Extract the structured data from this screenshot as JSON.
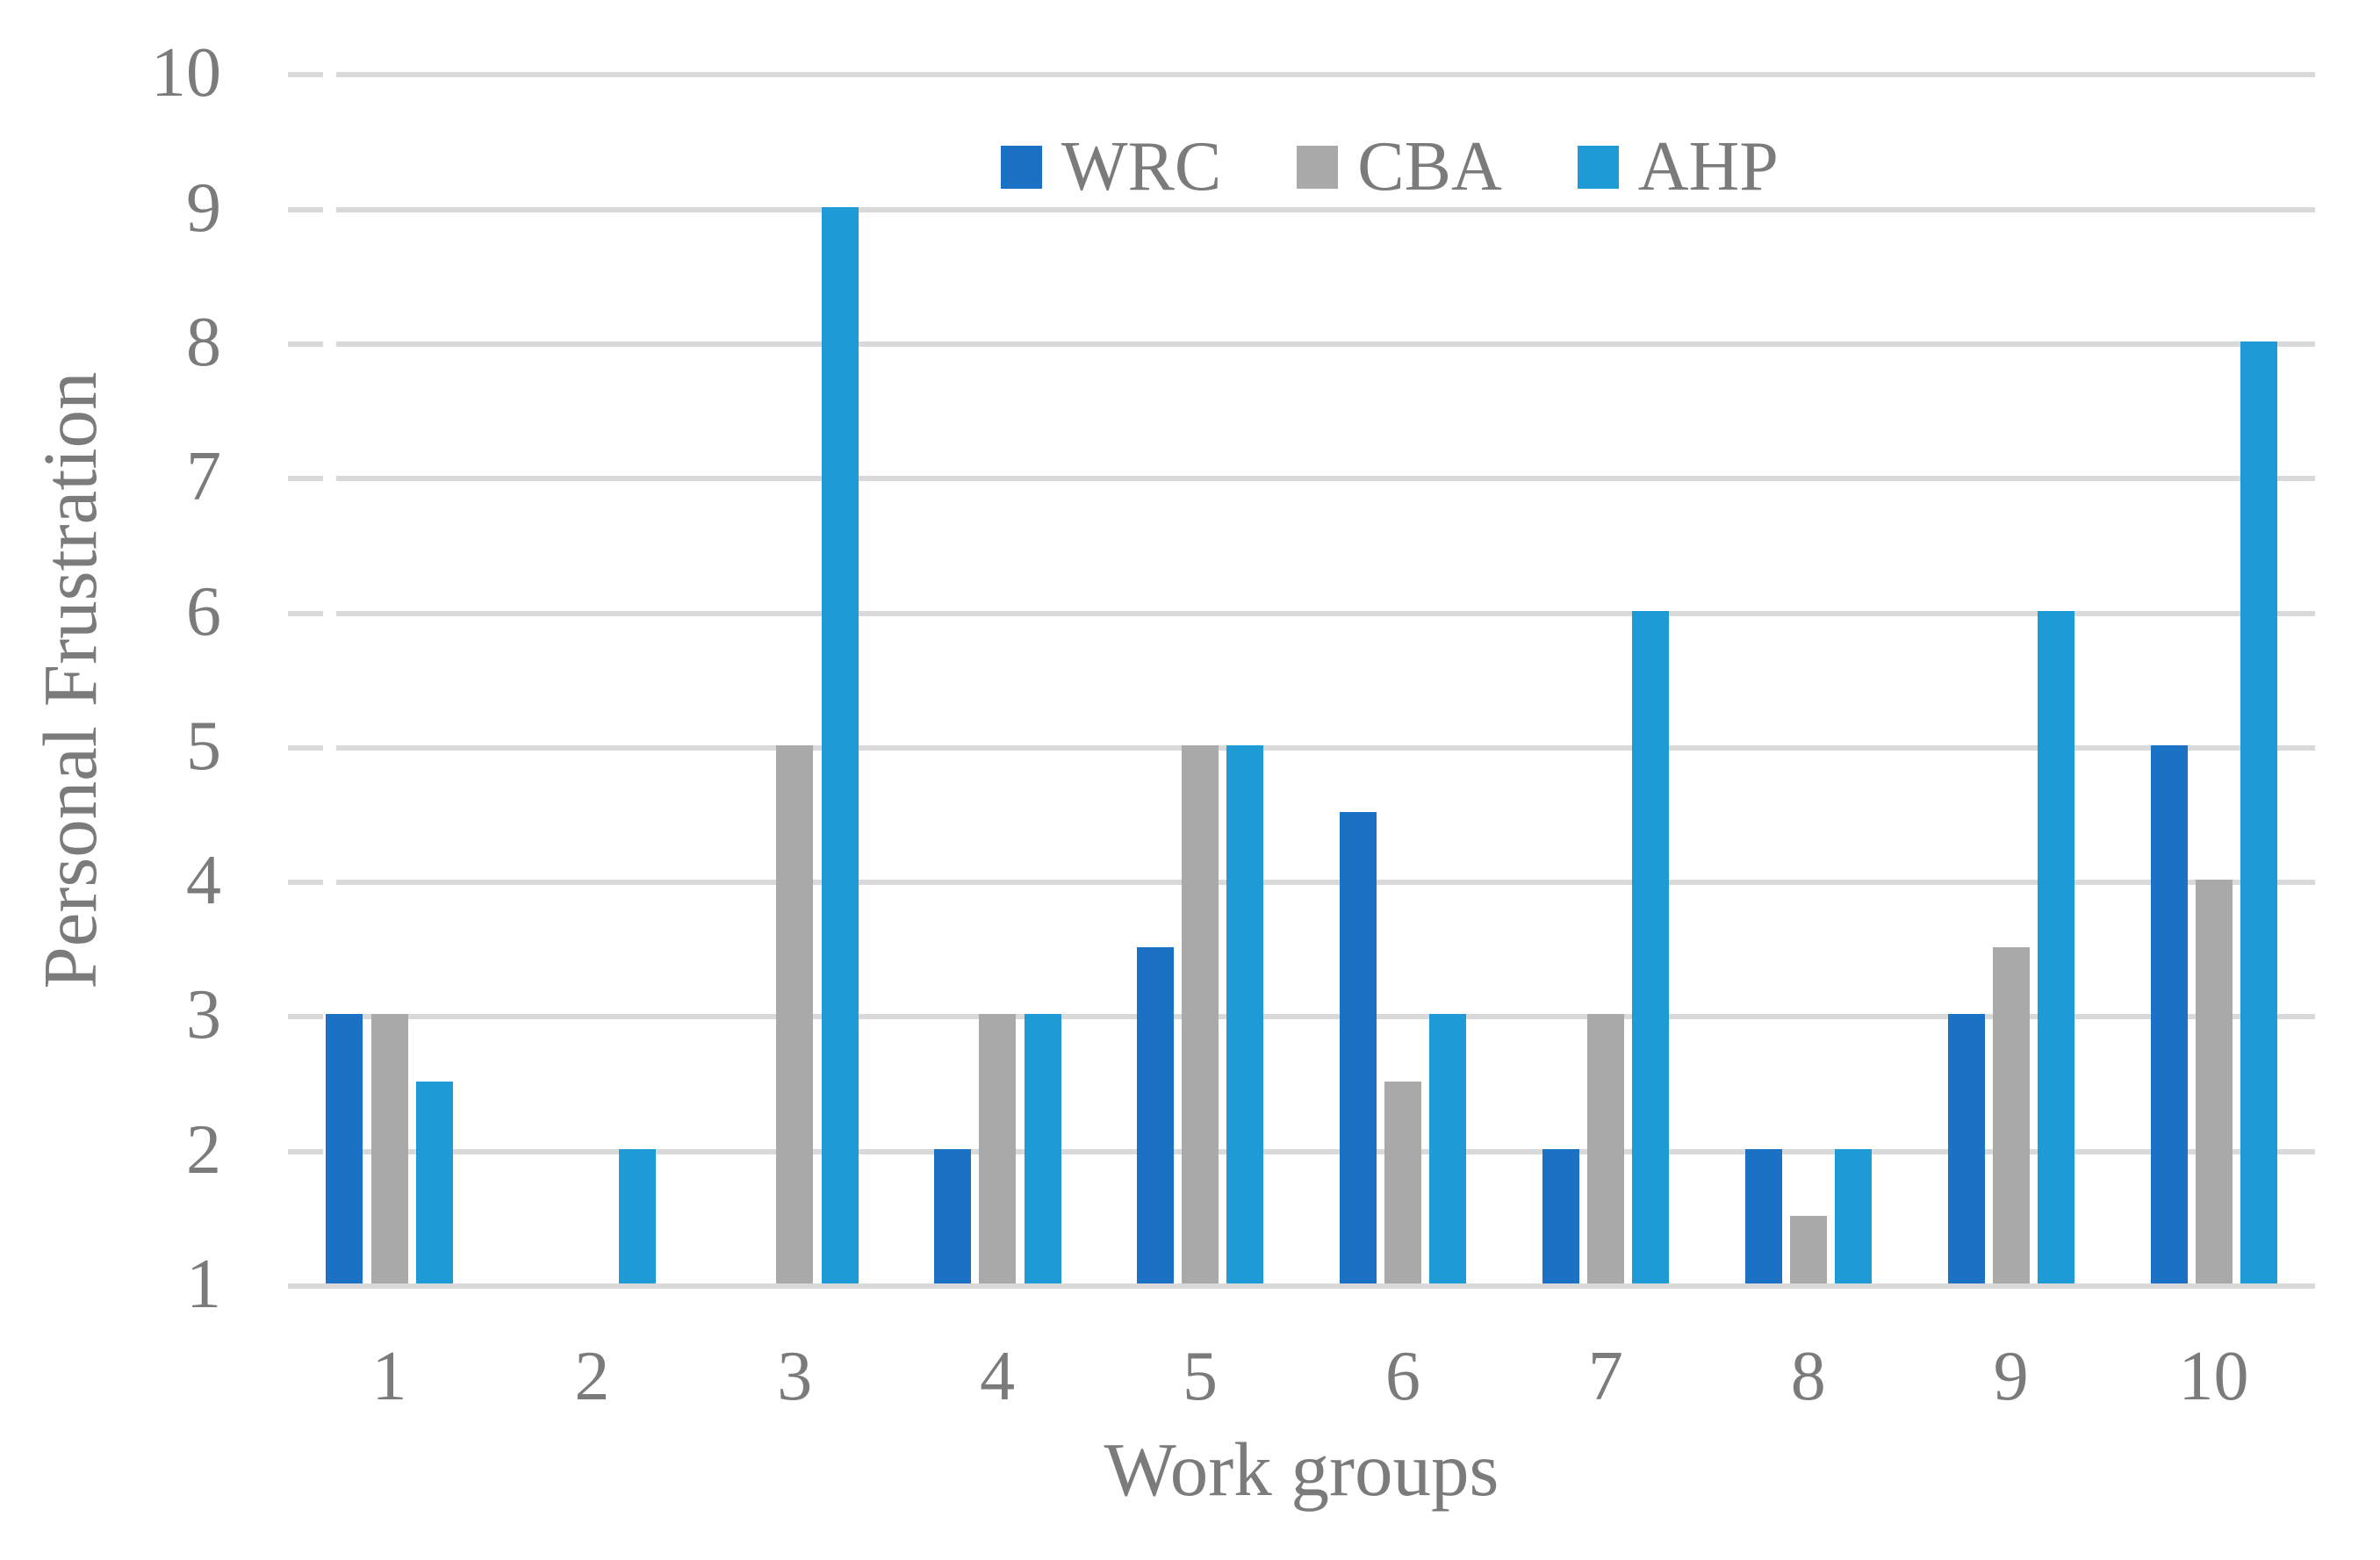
{
  "chart_data": {
    "type": "bar",
    "title": "",
    "categories": [
      "1",
      "2",
      "3",
      "4",
      "5",
      "6",
      "7",
      "8",
      "9",
      "10"
    ],
    "series": [
      {
        "name": "WRC",
        "color": "#1B72C4",
        "values": [
          3,
          1,
          1,
          2,
          3.5,
          4.5,
          2,
          2,
          3,
          5
        ]
      },
      {
        "name": "CBA",
        "color": "#A9A9A9",
        "values": [
          3,
          1,
          5,
          3,
          5,
          2.5,
          3,
          1.5,
          3.5,
          4
        ]
      },
      {
        "name": "AHP",
        "color": "#1E9BD7",
        "values": [
          2.5,
          2,
          9,
          3,
          5,
          3,
          6,
          2,
          6,
          8
        ]
      }
    ],
    "xlabel": "Work groups",
    "ylabel": "Personal Frustration",
    "ylim": [
      1,
      10
    ],
    "yticks": [
      1,
      2,
      3,
      4,
      5,
      6,
      7,
      8,
      9,
      10
    ],
    "bar_baseline": 1,
    "grid": true,
    "legend_position": "top-center"
  },
  "style": {
    "background": "#FFFFFF",
    "grid_color": "#D9D9D9",
    "text_color": "#7B7B7B"
  }
}
